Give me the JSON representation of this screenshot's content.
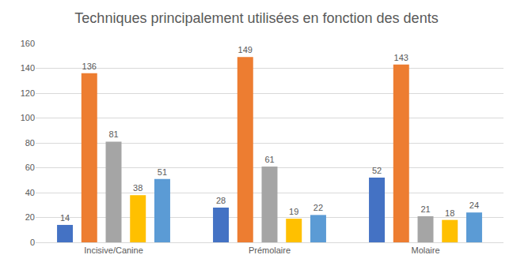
{
  "chart_data": {
    "type": "bar",
    "title": "Techniques principalement utilisées en fonction des dents",
    "categories": [
      "Incisive/Canine",
      "Prémolaire",
      "Molaire"
    ],
    "series": [
      {
        "color": "#4472c4",
        "values": [
          14,
          28,
          52
        ]
      },
      {
        "color": "#ed7d31",
        "values": [
          136,
          149,
          143
        ]
      },
      {
        "color": "#a5a5a5",
        "values": [
          81,
          61,
          21
        ]
      },
      {
        "color": "#ffc000",
        "values": [
          38,
          19,
          18
        ]
      },
      {
        "color": "#5b9bd5",
        "values": [
          51,
          22,
          24
        ]
      }
    ],
    "ylim": [
      0,
      160
    ],
    "yticks": [
      0,
      20,
      40,
      60,
      80,
      100,
      120,
      140,
      160
    ],
    "grid": true,
    "data_labels": true
  }
}
